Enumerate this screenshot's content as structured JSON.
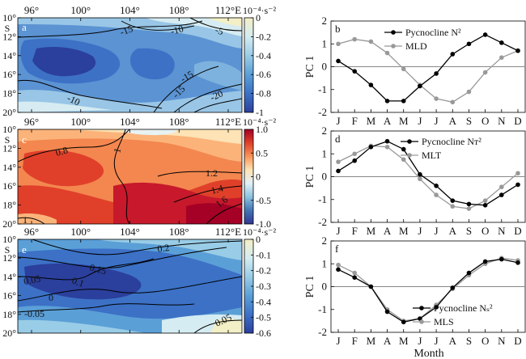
{
  "maps": [
    {
      "panel": "a",
      "xticks": [
        "96°",
        "100°",
        "104°",
        "108°",
        "112°E"
      ],
      "yticks": [
        "10°",
        "12°",
        "14°",
        "16°",
        "18°",
        "20°"
      ],
      "hemisphere": "S",
      "colorbar": {
        "unit": "10⁻⁴·s⁻²",
        "ticks": [
          "0",
          "-0.2",
          "-0.4",
          "-0.6",
          "-0.8",
          "-1"
        ],
        "range": [
          -1,
          0
        ],
        "colors": [
          "#f3efc6",
          "#d4ecf2",
          "#99cce6",
          "#5b9fd7",
          "#3c71c6",
          "#2b3f9c"
        ]
      },
      "contour_labels": [
        "-15",
        "-10",
        "-5",
        "-15",
        "-10",
        "-15",
        "-20"
      ]
    },
    {
      "panel": "c",
      "xticks": [
        "96°",
        "100°",
        "104°",
        "108°",
        "112°E"
      ],
      "yticks": [
        "10°",
        "12°",
        "14°",
        "16°",
        "18°",
        "20°"
      ],
      "hemisphere": "S",
      "colorbar": {
        "unit": "10⁻⁴·s⁻²",
        "ticks": [
          "1.0",
          "0.5",
          "0",
          "-0.5",
          "-1.0"
        ],
        "range": [
          -1,
          1
        ],
        "colors": [
          "#a50026",
          "#e0402a",
          "#f99458",
          "#fde3b5",
          "#e1f0f6",
          "#8dc2e0",
          "#4374b4",
          "#313695"
        ]
      },
      "contour_labels": [
        "0.8",
        "1",
        "1.2",
        "1.4",
        "1.6",
        "1"
      ]
    },
    {
      "panel": "e",
      "xticks": [
        "96°",
        "100°",
        "104°",
        "108°",
        "112°E"
      ],
      "yticks": [
        "10°",
        "12°",
        "14°",
        "16°",
        "18°",
        "20°"
      ],
      "hemisphere": "S",
      "colorbar": {
        "unit": "10⁻⁴·s⁻²",
        "ticks": [
          "0",
          "-0.1",
          "-0.2",
          "-0.3",
          "-0.4",
          "-0.5",
          "-0.6"
        ],
        "range": [
          -0.6,
          0
        ],
        "colors": [
          "#f3efc6",
          "#d4ecf2",
          "#99cce6",
          "#5b9fd7",
          "#3c71c6",
          "#2b3f9c"
        ]
      },
      "contour_labels": [
        "0.2",
        "0.15",
        "0.1",
        "0.05",
        "0",
        "-0.05",
        "0.05"
      ]
    }
  ],
  "chart_data": [
    {
      "type": "line",
      "panel": "b",
      "categories": [
        "J",
        "F",
        "M",
        "A",
        "M",
        "J",
        "J",
        "A",
        "S",
        "O",
        "N",
        "D"
      ],
      "ylabel": "PC 1",
      "ylim": [
        -2,
        2
      ],
      "yticks": [
        "2",
        "1",
        "0",
        "-1",
        "-2"
      ],
      "grid": false,
      "legend": "top-right",
      "series": [
        {
          "name": "Pycnocline N²",
          "color": "#000000",
          "values": [
            0.25,
            -0.2,
            -0.8,
            -1.5,
            -1.5,
            -0.85,
            -0.3,
            0.55,
            1.0,
            1.4,
            1.05,
            0.7
          ]
        },
        {
          "name": "MLD",
          "color": "#999999",
          "values": [
            1.0,
            1.2,
            1.1,
            0.6,
            -0.1,
            -0.8,
            -1.4,
            -1.55,
            -1.1,
            -0.25,
            0.4,
            0.7
          ]
        }
      ]
    },
    {
      "type": "line",
      "panel": "d",
      "categories": [
        "J",
        "F",
        "M",
        "A",
        "M",
        "J",
        "J",
        "A",
        "S",
        "O",
        "N",
        "D"
      ],
      "ylabel": "PC 1",
      "ylim": [
        -2,
        2
      ],
      "yticks": [
        "2",
        "1",
        "0",
        "-1",
        "-2"
      ],
      "grid": false,
      "legend": "top-right",
      "series": [
        {
          "name": "Pycnocline Nᴛ²",
          "color": "#000000",
          "values": [
            0.25,
            0.7,
            1.3,
            1.55,
            1.2,
            0.1,
            -0.4,
            -1.05,
            -1.2,
            -1.25,
            -0.8,
            -0.35
          ]
        },
        {
          "name": "MLT",
          "color": "#999999",
          "values": [
            0.65,
            1.0,
            1.35,
            1.3,
            0.75,
            -0.1,
            -0.8,
            -1.3,
            -1.4,
            -1.05,
            -0.45,
            0.15
          ]
        }
      ]
    },
    {
      "type": "line",
      "panel": "f",
      "categories": [
        "J",
        "F",
        "M",
        "A",
        "M",
        "J",
        "J",
        "A",
        "S",
        "O",
        "N",
        "D"
      ],
      "xlabel": "Month",
      "ylabel": "PC 1",
      "ylim": [
        -2,
        2
      ],
      "yticks": [
        "2",
        "1",
        "0",
        "-1",
        "-2"
      ],
      "grid": false,
      "legend": "bottom-right",
      "series": [
        {
          "name": "Pycnocline Nₛ²",
          "color": "#000000",
          "values": [
            0.75,
            0.4,
            0.0,
            -1.1,
            -1.55,
            -1.4,
            -0.9,
            -0.05,
            0.6,
            1.1,
            1.2,
            1.05
          ]
        },
        {
          "name": "MLS",
          "color": "#999999",
          "values": [
            0.95,
            0.6,
            0.0,
            -1.0,
            -1.5,
            -1.4,
            -0.8,
            -0.1,
            0.5,
            1.0,
            1.25,
            1.15
          ]
        }
      ]
    }
  ]
}
